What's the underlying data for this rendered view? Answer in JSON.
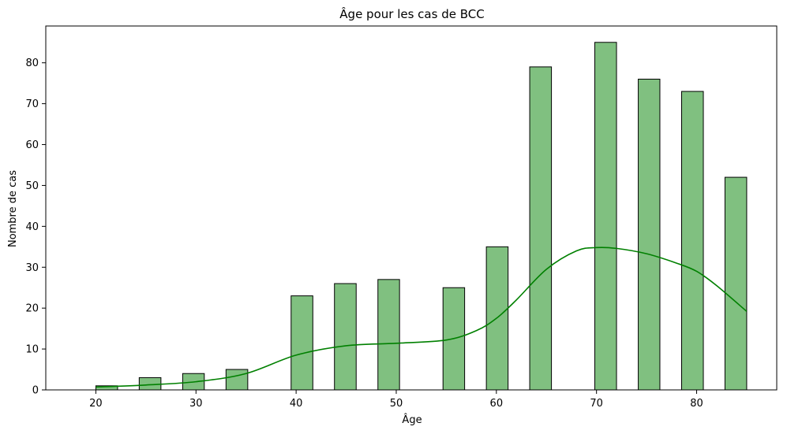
{
  "chart_data": {
    "type": "bar",
    "subtype": "histogram-with-kde",
    "title": "Âge pour les cas de BCC",
    "xlabel": "Âge",
    "ylabel": "Nombre de cas",
    "xlim": [
      15,
      88
    ],
    "ylim": [
      0,
      89
    ],
    "xticks": [
      20,
      30,
      40,
      50,
      60,
      70,
      80
    ],
    "yticks": [
      0,
      10,
      20,
      30,
      40,
      50,
      60,
      70,
      80
    ],
    "grid": false,
    "bar_color": "#80c080",
    "edge_color": "#000000",
    "kde_color": "#008000",
    "bins": [
      {
        "x0": 20.0,
        "x1": 22.17,
        "value": 1
      },
      {
        "x0": 24.33,
        "x1": 26.5,
        "value": 3
      },
      {
        "x0": 28.67,
        "x1": 30.83,
        "value": 4
      },
      {
        "x0": 33.0,
        "x1": 35.17,
        "value": 5
      },
      {
        "x0": 39.5,
        "x1": 41.67,
        "value": 23
      },
      {
        "x0": 43.83,
        "x1": 46.0,
        "value": 26
      },
      {
        "x0": 48.17,
        "x1": 50.33,
        "value": 27
      },
      {
        "x0": 54.67,
        "x1": 56.83,
        "value": 25
      },
      {
        "x0": 59.0,
        "x1": 61.17,
        "value": 35
      },
      {
        "x0": 63.33,
        "x1": 65.5,
        "value": 79
      },
      {
        "x0": 69.83,
        "x1": 72.0,
        "value": 85
      },
      {
        "x0": 74.17,
        "x1": 76.33,
        "value": 76
      },
      {
        "x0": 78.5,
        "x1": 80.67,
        "value": 73
      },
      {
        "x0": 82.83,
        "x1": 85.0,
        "value": 52
      }
    ],
    "kde": {
      "x": [
        20,
        25,
        30,
        35,
        40,
        45,
        50,
        55,
        58,
        60,
        62,
        65,
        68,
        70,
        72,
        75,
        78,
        80,
        82,
        85
      ],
      "y": [
        0.7,
        1.2,
        2.0,
        4.0,
        8.5,
        10.8,
        11.4,
        12.2,
        14.5,
        17.5,
        22.0,
        29.5,
        34.0,
        34.8,
        34.6,
        33.3,
        31.0,
        29.0,
        25.5,
        19.2
      ]
    }
  }
}
